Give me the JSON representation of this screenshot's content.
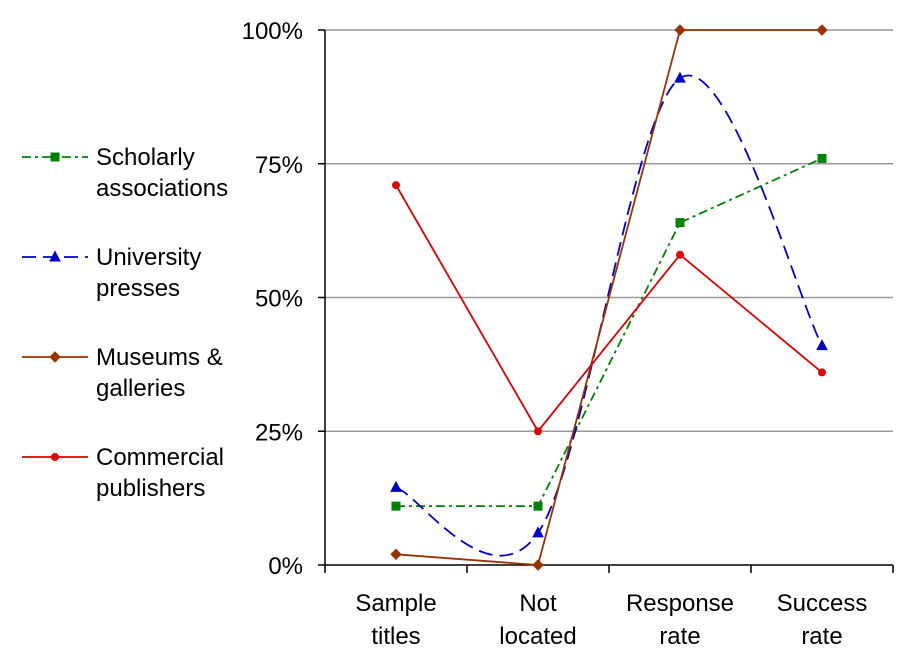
{
  "chart_data": {
    "type": "line",
    "categories": [
      [
        "Sample",
        "titles"
      ],
      [
        "Not",
        "located"
      ],
      [
        "Response",
        "rate"
      ],
      [
        "Success",
        "rate"
      ]
    ],
    "y_ticks": [
      {
        "value": 0,
        "label": "0%"
      },
      {
        "value": 25,
        "label": "25%"
      },
      {
        "value": 50,
        "label": "50%"
      },
      {
        "value": 75,
        "label": "75%"
      },
      {
        "value": 100,
        "label": "100%"
      }
    ],
    "ylim": [
      0,
      100
    ],
    "grid": "horizontal",
    "legend_position": "left",
    "series": [
      {
        "name": [
          "Scholarly",
          "associations"
        ],
        "values": [
          11,
          11,
          64,
          76
        ],
        "color": "#008000",
        "dash": "dash-dot",
        "marker": "square",
        "smooth": false
      },
      {
        "name": [
          "University",
          "presses"
        ],
        "values": [
          14.5,
          6,
          91,
          41
        ],
        "color": "#0000CC",
        "dash": "dash",
        "marker": "triangle",
        "smooth": true
      },
      {
        "name": [
          "Museums &",
          "galleries"
        ],
        "values": [
          2,
          0,
          100,
          100
        ],
        "color": "#993300",
        "dash": "solid",
        "marker": "diamond",
        "smooth": false
      },
      {
        "name": [
          "Commercial",
          "publishers"
        ],
        "values": [
          71,
          25,
          58,
          36
        ],
        "color": "#DD0000",
        "dash": "solid",
        "marker": "circle",
        "smooth": false
      }
    ]
  }
}
